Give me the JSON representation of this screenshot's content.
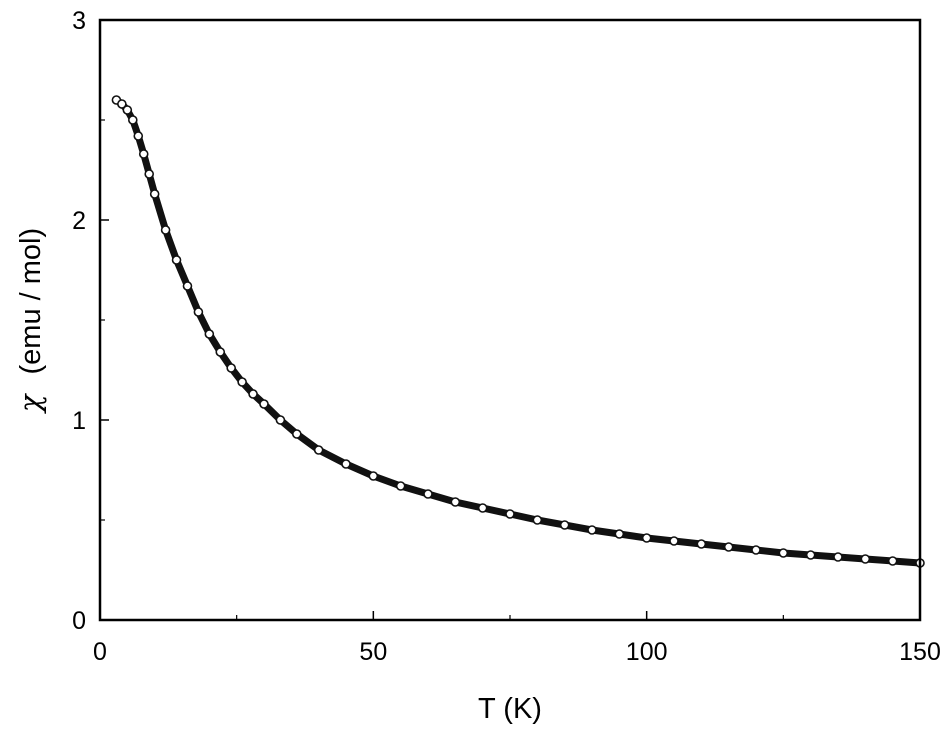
{
  "chart_data": {
    "type": "scatter",
    "xlabel": "T (K)",
    "ylabel_symbol": "χ",
    "ylabel_units": "(emu / mol)",
    "xlim": [
      0,
      150
    ],
    "ylim": [
      0,
      3
    ],
    "x_ticks": [
      {
        "value": 0,
        "label": "0"
      },
      {
        "value": 50,
        "label": "50"
      },
      {
        "value": 100,
        "label": "100"
      },
      {
        "value": 150,
        "label": "150"
      }
    ],
    "x_minor_ticks": [
      25,
      75,
      125
    ],
    "y_ticks": [
      {
        "value": 0,
        "label": "0"
      },
      {
        "value": 1,
        "label": "1"
      },
      {
        "value": 2,
        "label": "2"
      },
      {
        "value": 3,
        "label": "3"
      }
    ],
    "y_minor_ticks": [
      0.5,
      1.5,
      2.5
    ],
    "grid": false,
    "series": [
      {
        "color": "#111111",
        "marker": "open-circle",
        "x": [
          3,
          4,
          5,
          6,
          7,
          8,
          9,
          10,
          12,
          14,
          16,
          18,
          20,
          22,
          24,
          26,
          28,
          30,
          33,
          36,
          40,
          45,
          50,
          55,
          60,
          65,
          70,
          75,
          80,
          85,
          90,
          95,
          100,
          105,
          110,
          115,
          120,
          125,
          130,
          135,
          140,
          145,
          150
        ],
        "y": [
          2.6,
          2.58,
          2.55,
          2.5,
          2.42,
          2.33,
          2.23,
          2.13,
          1.95,
          1.8,
          1.67,
          1.54,
          1.43,
          1.34,
          1.26,
          1.19,
          1.13,
          1.08,
          1.0,
          0.93,
          0.85,
          0.78,
          0.72,
          0.67,
          0.63,
          0.59,
          0.56,
          0.53,
          0.5,
          0.475,
          0.45,
          0.43,
          0.41,
          0.395,
          0.38,
          0.365,
          0.35,
          0.335,
          0.325,
          0.315,
          0.305,
          0.295,
          0.285
        ]
      }
    ]
  }
}
